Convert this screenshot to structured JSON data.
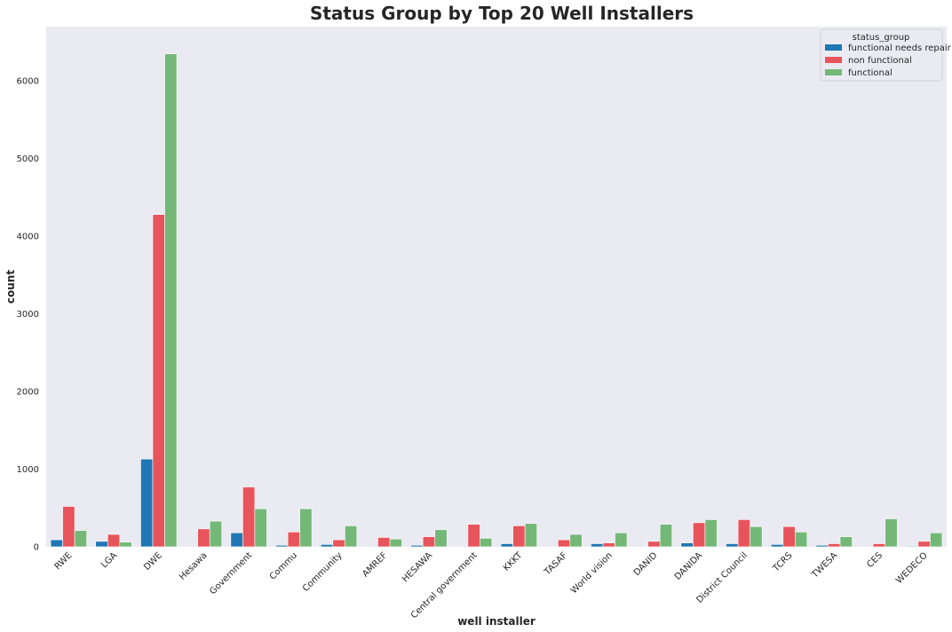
{
  "chart_data": {
    "type": "bar",
    "title": "Status Group by Top 20 Well Installers",
    "xlabel": "well installer",
    "ylabel": "count",
    "ylim": [
      0,
      6700
    ],
    "yticks": [
      0,
      1000,
      2000,
      3000,
      4000,
      5000,
      6000
    ],
    "grid": false,
    "legend": {
      "title": "status_group",
      "placement": "top-right"
    },
    "categories": [
      "RWE",
      "LGA",
      "DWE",
      "Hesawa",
      "Government",
      "Commu",
      "Community",
      "AMREF",
      "HESAWA",
      "Central government",
      "KKKT",
      "TASAF",
      "World vision",
      "DANID",
      "DANIDA",
      "District Council",
      "TCRS",
      "TWESA",
      "CES",
      "WEDECO"
    ],
    "series": [
      {
        "name": "functional needs repair",
        "color": "#1f77b4",
        "values": [
          90,
          70,
          1130,
          0,
          180,
          20,
          30,
          0,
          20,
          0,
          40,
          0,
          40,
          0,
          50,
          40,
          30,
          20,
          0,
          10
        ]
      },
      {
        "name": "non functional",
        "color": "#e8545b",
        "values": [
          520,
          160,
          4280,
          230,
          770,
          190,
          90,
          120,
          130,
          290,
          270,
          90,
          50,
          70,
          310,
          350,
          260,
          40,
          40,
          70
        ]
      },
      {
        "name": "functional",
        "color": "#74b878",
        "values": [
          210,
          60,
          6350,
          330,
          490,
          490,
          270,
          100,
          220,
          110,
          300,
          160,
          180,
          290,
          350,
          260,
          190,
          130,
          360,
          180
        ]
      }
    ]
  }
}
